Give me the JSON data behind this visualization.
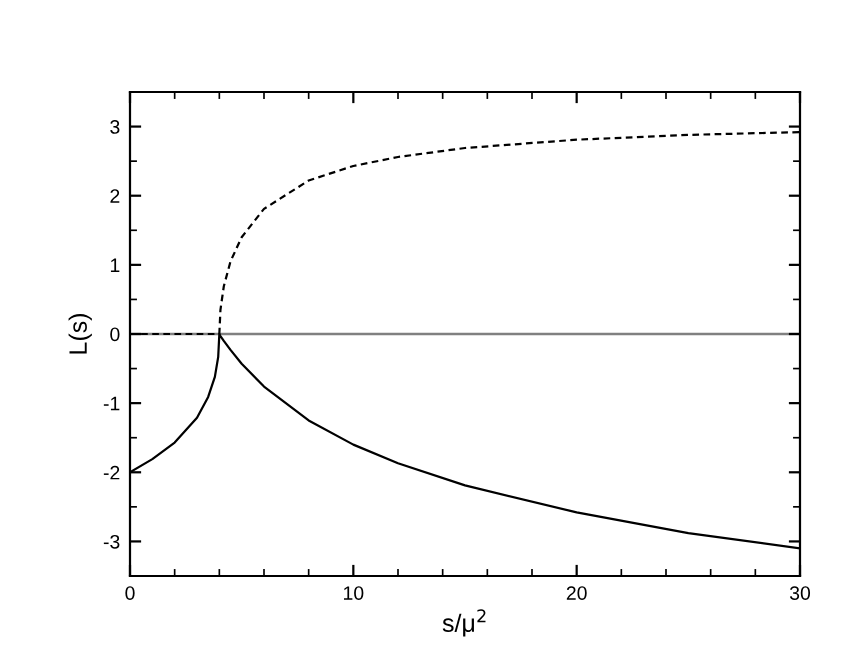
{
  "chart_data": {
    "type": "line",
    "xlabel": "s/μ$^{2}$",
    "ylabel": "L(s)",
    "xlim": [
      0,
      30
    ],
    "ylim": [
      -3.5,
      3.5
    ],
    "xticks": [
      0,
      10,
      20,
      30
    ],
    "yticks": [
      -3,
      -2,
      -1,
      0,
      1,
      2,
      3
    ],
    "grid": false,
    "marker": "none",
    "ref_lines": [
      {
        "axis": "y",
        "value": 0,
        "color": "#808080"
      }
    ],
    "series": [
      {
        "color": "#000000",
        "line_style": "solid",
        "x": [
          0,
          1,
          2,
          3,
          3.5,
          3.8,
          3.95,
          4,
          4.05,
          4.2,
          4.5,
          5,
          6,
          8,
          10,
          12,
          15,
          20,
          25,
          30
        ],
        "values": [
          -2,
          -1.81,
          -1.57,
          -1.21,
          -0.91,
          -0.62,
          -0.33,
          0,
          -0.03,
          -0.1,
          -0.23,
          -0.43,
          -0.76,
          -1.25,
          -1.6,
          -1.87,
          -2.19,
          -2.58,
          -2.88,
          -3.1
        ]
      },
      {
        "color": "#000000",
        "line_style": "dashed",
        "x": [
          0,
          2,
          4,
          4.05,
          4.2,
          4.5,
          5,
          6,
          8,
          10,
          12,
          15,
          20,
          25,
          30
        ],
        "values": [
          0,
          0,
          0,
          0.35,
          0.69,
          1.05,
          1.4,
          1.81,
          2.22,
          2.43,
          2.56,
          2.69,
          2.81,
          2.88,
          2.92
        ]
      }
    ]
  }
}
